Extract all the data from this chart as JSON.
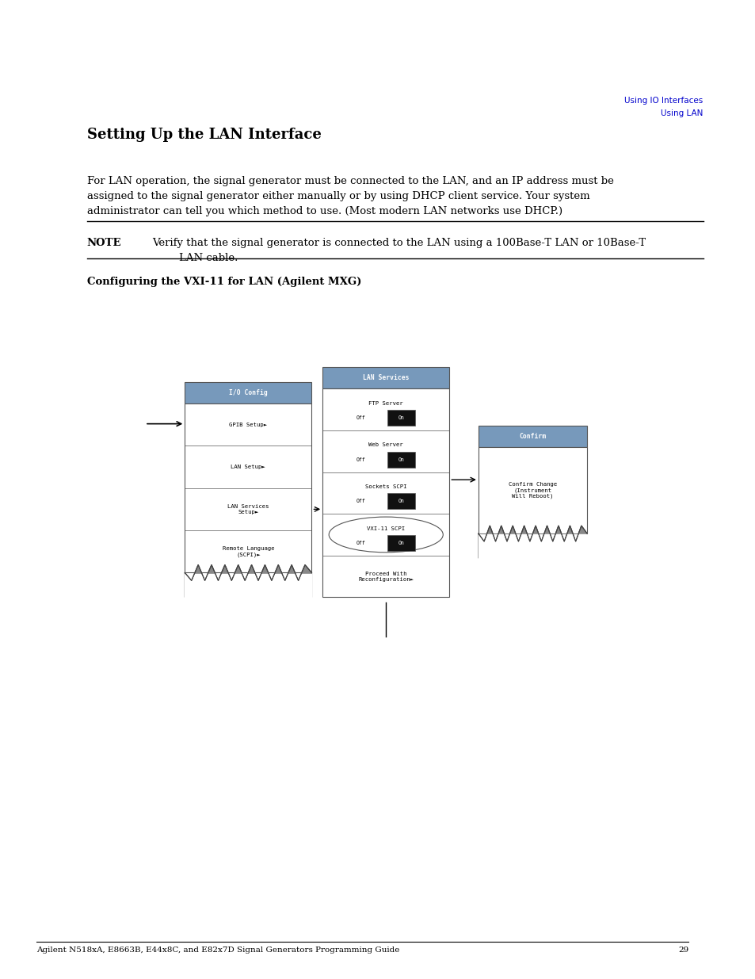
{
  "bg_color": "#ffffff",
  "page_width": 9.54,
  "page_height": 12.35,
  "top_right_text1": "Using IO Interfaces",
  "top_right_text2": "Using LAN",
  "top_right_color": "#0000cc",
  "section_title": "Setting Up the LAN Interface",
  "body_text": "For LAN operation, the signal generator must be connected to the LAN, and an IP address must be\nassigned to the signal generator either manually or by using DHCP client service. Your system\nadministrator can tell you which method to use. (Most modern LAN networks use DHCP.)",
  "note_label": "NOTE",
  "note_text": "Verify that the signal generator is connected to the LAN using a 100Base-T LAN or 10Base-T\n        LAN cable.",
  "sub_title": "Configuring the VXI-11 for LAN (Agilent MXG)",
  "footer_text": "Agilent N518xA, E8663B, E44x8C, and E82x7D Signal Generators Programming Guide",
  "footer_page": "29",
  "title_bar_color": "#7799bb",
  "panel_bg_color": "#f0f0f0",
  "panel_border_color": "#555555",
  "highlight_bg": "#aabbcc",
  "on_button_color": "#111111",
  "on_button_text": "#ffffff",
  "circle_color": "#cccccc"
}
